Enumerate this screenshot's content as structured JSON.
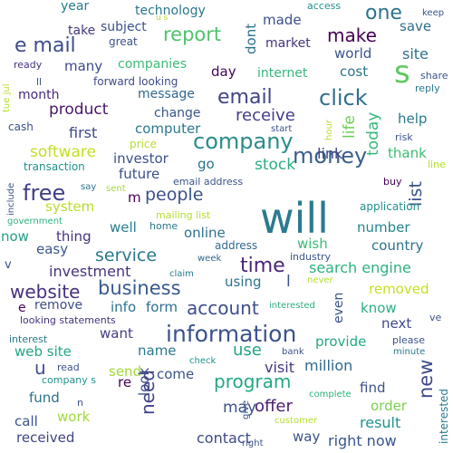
{
  "words": [
    {
      "text": "will",
      "color": "#2a7b8e"
    },
    {
      "text": "information",
      "color": "#3b528b"
    },
    {
      "text": "company",
      "color": "#2b8c8c"
    },
    {
      "text": "email",
      "color": "#404387"
    },
    {
      "text": "money",
      "color": "#3a5f8c"
    },
    {
      "text": "business",
      "color": "#375a8c"
    },
    {
      "text": "website",
      "color": "#46307e"
    },
    {
      "text": "free",
      "color": "#3f3f85"
    },
    {
      "text": "click",
      "color": "#2f6f8e"
    },
    {
      "text": "e mail",
      "color": "#3c4d8a"
    },
    {
      "text": "report",
      "color": "#4ec36b"
    },
    {
      "text": "people",
      "color": "#3b528b"
    },
    {
      "text": "time",
      "color": "#482576"
    },
    {
      "text": "make",
      "color": "#440154"
    },
    {
      "text": "one",
      "color": "#2c728e"
    },
    {
      "text": "s",
      "color": "#5ec962"
    },
    {
      "text": "program",
      "color": "#22a884"
    },
    {
      "text": "account",
      "color": "#3d4e8a"
    },
    {
      "text": "need",
      "color": "#414487"
    },
    {
      "text": "new",
      "color": "#3e4989"
    },
    {
      "text": "service",
      "color": "#2a788e"
    },
    {
      "text": "receive",
      "color": "#433e85"
    },
    {
      "text": "software",
      "color": "#c2df23"
    },
    {
      "text": "u",
      "color": "#3b518b"
    },
    {
      "text": "offer",
      "color": "#481f70"
    },
    {
      "text": "may",
      "color": "#3b528b"
    },
    {
      "text": "stock",
      "color": "#29af7f"
    },
    {
      "text": "list",
      "color": "#3a538b"
    },
    {
      "text": "today",
      "color": "#35b779"
    },
    {
      "text": "life",
      "color": "#6ece58"
    },
    {
      "text": "product",
      "color": "#481668"
    },
    {
      "text": "first",
      "color": "#3f4788"
    },
    {
      "text": "investment",
      "color": "#46337f"
    },
    {
      "text": "search engine",
      "color": "#2db27d"
    },
    {
      "text": "visit",
      "color": "#453882"
    },
    {
      "text": "million",
      "color": "#31688e"
    },
    {
      "text": "use",
      "color": "#20a486"
    },
    {
      "text": "link",
      "color": "#404688"
    },
    {
      "text": "contact",
      "color": "#3e4a89"
    },
    {
      "text": "result",
      "color": "#1f948c"
    },
    {
      "text": "right now",
      "color": "#39558c"
    },
    {
      "text": "subject",
      "color": "#3b528b"
    },
    {
      "text": "technology",
      "color": "#2a778e"
    },
    {
      "text": "take",
      "color": "#44397f"
    },
    {
      "text": "year",
      "color": "#287d8e"
    },
    {
      "text": "many",
      "color": "#3e4989"
    },
    {
      "text": "companies",
      "color": "#3dbc74"
    },
    {
      "text": "month",
      "color": "#482979"
    },
    {
      "text": "day",
      "color": "#450559"
    },
    {
      "text": "internet",
      "color": "#34b679"
    },
    {
      "text": "cost",
      "color": "#2b758e"
    },
    {
      "text": "world",
      "color": "#3b528b"
    },
    {
      "text": "site",
      "color": "#2d708e"
    },
    {
      "text": "save",
      "color": "#2e6e8e"
    },
    {
      "text": "market",
      "color": "#46327e"
    },
    {
      "text": "made",
      "color": "#3c4f8a"
    },
    {
      "text": "dont",
      "color": "#2c728e"
    },
    {
      "text": "message",
      "color": "#31688e"
    },
    {
      "text": "forward looking",
      "color": "#3e4a89"
    },
    {
      "text": "great",
      "color": "#3b528b"
    },
    {
      "text": "change",
      "color": "#39568c"
    },
    {
      "text": "computer",
      "color": "#2a788e"
    },
    {
      "text": "price",
      "color": "#b5de2b"
    },
    {
      "text": "investor",
      "color": "#3b528b"
    },
    {
      "text": "future",
      "color": "#3d4d8a"
    },
    {
      "text": "go",
      "color": "#2c728e"
    },
    {
      "text": "thank",
      "color": "#3ebc73"
    },
    {
      "text": "help",
      "color": "#2a788e"
    },
    {
      "text": "system",
      "color": "#b8de29"
    },
    {
      "text": "thing",
      "color": "#46327e"
    },
    {
      "text": "easy",
      "color": "#39568c"
    },
    {
      "text": "now",
      "color": "#1fa287"
    },
    {
      "text": "well",
      "color": "#287c8e"
    },
    {
      "text": "online",
      "color": "#2d718e"
    },
    {
      "text": "number",
      "color": "#24868e"
    },
    {
      "text": "country",
      "color": "#2c738e"
    },
    {
      "text": "wish",
      "color": "#3cbb75"
    },
    {
      "text": "remove",
      "color": "#3d4e8a"
    },
    {
      "text": "removed",
      "color": "#c8e020"
    },
    {
      "text": "info",
      "color": "#2b758e"
    },
    {
      "text": "form",
      "color": "#2e6f8e"
    },
    {
      "text": "know",
      "color": "#29af7f"
    },
    {
      "text": "next",
      "color": "#3f4889"
    },
    {
      "text": "even",
      "color": "#3b528b"
    },
    {
      "text": "want",
      "color": "#433d84"
    },
    {
      "text": "name",
      "color": "#2a788e"
    },
    {
      "text": "provide",
      "color": "#23a983"
    },
    {
      "text": "web site",
      "color": "#22a785"
    },
    {
      "text": "send",
      "color": "#a0da39"
    },
    {
      "text": "come",
      "color": "#3b528b"
    },
    {
      "text": "look",
      "color": "#3e4989"
    },
    {
      "text": "re",
      "color": "#440154"
    },
    {
      "text": "fund",
      "color": "#2c728e"
    },
    {
      "text": "find",
      "color": "#3b528b"
    },
    {
      "text": "order",
      "color": "#7ad151"
    },
    {
      "text": "call",
      "color": "#3b528b"
    },
    {
      "text": "work",
      "color": "#9fda3a"
    },
    {
      "text": "received",
      "color": "#414487"
    },
    {
      "text": "way",
      "color": "#3b528b"
    },
    {
      "text": "using",
      "color": "#2c728e"
    },
    {
      "text": "l",
      "color": "#3b528b"
    },
    {
      "text": "address",
      "color": "#31688e"
    },
    {
      "text": "email address",
      "color": "#3b528b"
    },
    {
      "text": "mailing list",
      "color": "#b5de2b"
    },
    {
      "text": "home",
      "color": "#2a788e"
    },
    {
      "text": "transaction",
      "color": "#21918c"
    },
    {
      "text": "cash",
      "color": "#3b528b"
    },
    {
      "text": "ready",
      "color": "#46337f"
    },
    {
      "text": "ll",
      "color": "#3b528b"
    },
    {
      "text": "looking statements",
      "color": "#46337f"
    },
    {
      "text": "interest",
      "color": "#2a788e"
    },
    {
      "text": "read",
      "color": "#3b528b"
    },
    {
      "text": "company s",
      "color": "#21918c"
    },
    {
      "text": "government",
      "color": "#2db27d"
    },
    {
      "text": "include",
      "color": "#3b528b"
    },
    {
      "text": "say",
      "color": "#2c728e"
    },
    {
      "text": "sent",
      "color": "#a0da39"
    },
    {
      "text": "access",
      "color": "#21918c"
    },
    {
      "text": "keep",
      "color": "#3b528b"
    },
    {
      "text": "share",
      "color": "#3b528b"
    },
    {
      "text": "reply",
      "color": "#2a788e"
    },
    {
      "text": "start",
      "color": "#3b528b"
    },
    {
      "text": "hour",
      "color": "#b5de2b"
    },
    {
      "text": "risk",
      "color": "#3b528b"
    },
    {
      "text": "buy",
      "color": "#440154"
    },
    {
      "text": "line",
      "color": "#b5de2b"
    },
    {
      "text": "application",
      "color": "#21918c"
    },
    {
      "text": "industry",
      "color": "#3b528b"
    },
    {
      "text": "week",
      "color": "#31688e"
    },
    {
      "text": "claim",
      "color": "#2a788e"
    },
    {
      "text": "never",
      "color": "#b5de2b"
    },
    {
      "text": "interested",
      "color": "#2db27d"
    },
    {
      "text": "please",
      "color": "#3b528b"
    },
    {
      "text": "minute",
      "color": "#2a788e"
    },
    {
      "text": "bank",
      "color": "#3b528b"
    },
    {
      "text": "check",
      "color": "#21918c"
    },
    {
      "text": "complete",
      "color": "#2db27d"
    },
    {
      "text": "give",
      "color": "#3b528b"
    },
    {
      "text": "customer",
      "color": "#b5de2b"
    },
    {
      "text": "right",
      "color": "#3b528b"
    },
    {
      "text": "v",
      "color": "#3b528b"
    },
    {
      "text": "e",
      "color": "#440154"
    },
    {
      "text": "ve",
      "color": "#3b528b"
    },
    {
      "text": "n",
      "color": "#3b528b"
    },
    {
      "text": "m",
      "color": "#440154"
    },
    {
      "text": "tue jul",
      "color": "#b5de2b"
    },
    {
      "text": "u s",
      "color": "#b5de2b"
    },
    {
      "text": "interested",
      "color": "#2a788e"
    }
  ]
}
